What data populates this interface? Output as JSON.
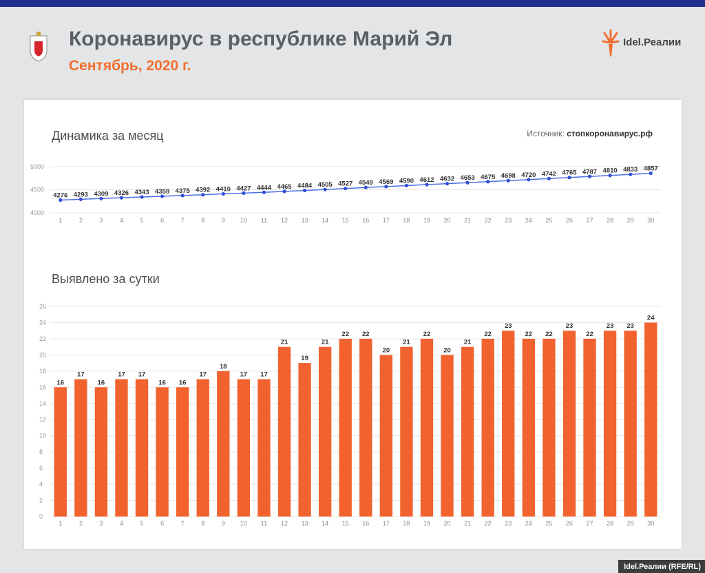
{
  "header": {
    "title": "Коронавирус в республике Марий Эл",
    "subtitle": "Сентябрь, 2020 г.",
    "logo_text": "Idel.Реалии"
  },
  "source": {
    "label": "Источник: ",
    "value": "стопкоронавирус.рф"
  },
  "footer": {
    "credit": "Idel.Реалии (RFE/RL)"
  },
  "colors": {
    "accent": "#ef6f2e",
    "line": "#4a6fe3",
    "brand_blue": "#1e2f8f",
    "bar": "#f2622e"
  },
  "chart_data": [
    {
      "type": "line",
      "title": "Динамика за месяц",
      "x": [
        1,
        2,
        3,
        4,
        5,
        6,
        7,
        8,
        9,
        10,
        11,
        12,
        13,
        14,
        15,
        16,
        17,
        18,
        19,
        20,
        21,
        22,
        23,
        24,
        25,
        26,
        27,
        28,
        29,
        30
      ],
      "series": [
        {
          "values": [
            4276,
            4293,
            4309,
            4326,
            4343,
            4359,
            4375,
            4392,
            4410,
            4427,
            4444,
            4465,
            4484,
            4505,
            4527,
            4549,
            4569,
            4590,
            4612,
            4632,
            4653,
            4675,
            4698,
            4720,
            4742,
            4765,
            4787,
            4810,
            4833,
            4857
          ]
        }
      ],
      "yticks": [
        4000,
        4500,
        5000
      ],
      "ylim": [
        4000,
        5000
      ],
      "grid": true
    },
    {
      "type": "bar",
      "title": "Выявлено за сутки",
      "categories": [
        1,
        2,
        3,
        4,
        5,
        6,
        7,
        8,
        9,
        10,
        11,
        12,
        13,
        14,
        15,
        16,
        17,
        18,
        19,
        20,
        21,
        22,
        23,
        24,
        25,
        26,
        27,
        28,
        29,
        30
      ],
      "values": [
        16,
        17,
        16,
        17,
        17,
        16,
        16,
        17,
        18,
        17,
        17,
        21,
        19,
        21,
        22,
        22,
        20,
        21,
        22,
        20,
        21,
        22,
        23,
        22,
        22,
        23,
        22,
        23,
        23,
        24
      ],
      "yticks": [
        0,
        2,
        4,
        6,
        8,
        10,
        12,
        14,
        16,
        18,
        20,
        22,
        24,
        26
      ],
      "ylim": [
        0,
        26
      ],
      "grid": true
    }
  ]
}
